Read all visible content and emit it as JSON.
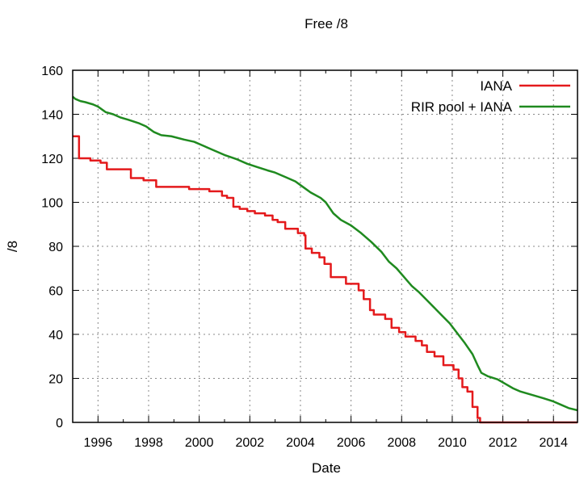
{
  "chart_data": {
    "type": "line",
    "title": "Free /8",
    "xlabel": "Date",
    "ylabel": "/8",
    "xlim": [
      1995.0,
      2014.95
    ],
    "ylim": [
      0,
      160
    ],
    "x_ticks": [
      "1996",
      "1998",
      "2000",
      "2002",
      "2004",
      "2006",
      "2008",
      "2010",
      "2012",
      "2014"
    ],
    "y_ticks": [
      "0",
      "20",
      "40",
      "60",
      "80",
      "100",
      "120",
      "140",
      "160"
    ],
    "grid": true,
    "legend_position": "top-right",
    "series": [
      {
        "name": "IANA",
        "color": "#e41a1c",
        "step": true,
        "points": [
          [
            1995.0,
            130
          ],
          [
            1995.25,
            120
          ],
          [
            1995.7,
            119
          ],
          [
            1996.1,
            118
          ],
          [
            1996.35,
            115
          ],
          [
            1997.3,
            111
          ],
          [
            1997.8,
            110
          ],
          [
            1998.3,
            107
          ],
          [
            1999.6,
            106
          ],
          [
            2000.4,
            105
          ],
          [
            2000.9,
            103
          ],
          [
            2001.1,
            102
          ],
          [
            2001.35,
            98
          ],
          [
            2001.6,
            97
          ],
          [
            2001.9,
            96
          ],
          [
            2002.2,
            95
          ],
          [
            2002.6,
            94
          ],
          [
            2002.9,
            92
          ],
          [
            2003.1,
            91
          ],
          [
            2003.4,
            88
          ],
          [
            2003.9,
            86
          ],
          [
            2004.15,
            85
          ],
          [
            2004.2,
            79
          ],
          [
            2004.45,
            77
          ],
          [
            2004.75,
            75
          ],
          [
            2004.95,
            72
          ],
          [
            2005.2,
            66
          ],
          [
            2005.8,
            63
          ],
          [
            2006.3,
            60
          ],
          [
            2006.5,
            56
          ],
          [
            2006.75,
            51
          ],
          [
            2006.9,
            49
          ],
          [
            2007.35,
            47
          ],
          [
            2007.6,
            43
          ],
          [
            2007.9,
            41
          ],
          [
            2008.15,
            39
          ],
          [
            2008.55,
            37
          ],
          [
            2008.8,
            35
          ],
          [
            2009.0,
            32
          ],
          [
            2009.3,
            30
          ],
          [
            2009.65,
            26
          ],
          [
            2010.05,
            24
          ],
          [
            2010.25,
            20
          ],
          [
            2010.4,
            16
          ],
          [
            2010.6,
            14
          ],
          [
            2010.8,
            7
          ],
          [
            2011.0,
            2
          ],
          [
            2011.1,
            0
          ],
          [
            2014.95,
            0
          ]
        ]
      },
      {
        "name": "RIR pool + IANA",
        "color": "#1f8a1f",
        "step": false,
        "points": [
          [
            1995.0,
            148
          ],
          [
            1995.1,
            147
          ],
          [
            1995.3,
            146
          ],
          [
            1995.5,
            145.5
          ],
          [
            1995.8,
            144.5
          ],
          [
            1996.0,
            143.5
          ],
          [
            1996.3,
            141
          ],
          [
            1996.6,
            140
          ],
          [
            1996.9,
            138.5
          ],
          [
            1997.2,
            137.5
          ],
          [
            1997.6,
            136
          ],
          [
            1997.9,
            134.5
          ],
          [
            1998.2,
            132
          ],
          [
            1998.5,
            130.5
          ],
          [
            1998.9,
            130
          ],
          [
            1999.4,
            128.5
          ],
          [
            1999.8,
            127.5
          ],
          [
            2000.1,
            126
          ],
          [
            2000.5,
            124
          ],
          [
            2001.0,
            121.5
          ],
          [
            2001.5,
            119.5
          ],
          [
            2001.9,
            117.5
          ],
          [
            2002.3,
            116
          ],
          [
            2002.7,
            114.5
          ],
          [
            2003.0,
            113.5
          ],
          [
            2003.4,
            111.5
          ],
          [
            2003.8,
            109.5
          ],
          [
            2004.1,
            107
          ],
          [
            2004.4,
            104.5
          ],
          [
            2004.8,
            102
          ],
          [
            2005.0,
            100
          ],
          [
            2005.3,
            95
          ],
          [
            2005.6,
            92
          ],
          [
            2006.0,
            89.5
          ],
          [
            2006.4,
            86
          ],
          [
            2006.8,
            82
          ],
          [
            2007.2,
            77.5
          ],
          [
            2007.5,
            73
          ],
          [
            2007.8,
            70
          ],
          [
            2008.1,
            66
          ],
          [
            2008.4,
            62
          ],
          [
            2008.7,
            59
          ],
          [
            2009.0,
            55.5
          ],
          [
            2009.3,
            52
          ],
          [
            2009.6,
            48.5
          ],
          [
            2009.9,
            45
          ],
          [
            2010.2,
            40.5
          ],
          [
            2010.5,
            36
          ],
          [
            2010.8,
            31
          ],
          [
            2011.0,
            26
          ],
          [
            2011.15,
            22.5
          ],
          [
            2011.4,
            21
          ],
          [
            2011.8,
            19.5
          ],
          [
            2012.1,
            17.5
          ],
          [
            2012.4,
            15.5
          ],
          [
            2012.7,
            14
          ],
          [
            2013.0,
            13
          ],
          [
            2013.3,
            12
          ],
          [
            2013.6,
            11
          ],
          [
            2014.0,
            9.5
          ],
          [
            2014.3,
            8
          ],
          [
            2014.6,
            6.5
          ],
          [
            2014.95,
            5.5
          ]
        ]
      }
    ]
  }
}
